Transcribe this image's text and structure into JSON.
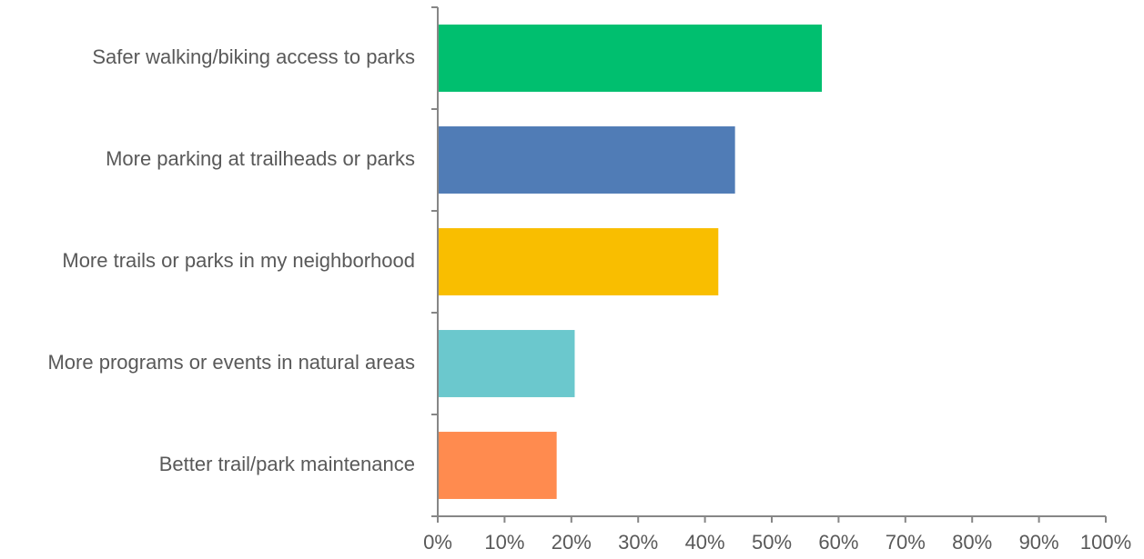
{
  "chart_data": {
    "type": "bar",
    "orientation": "horizontal",
    "categories": [
      "Safer walking/biking access to parks",
      "More parking at trailheads or parks",
      "More trails or parks in my neighborhood",
      "More programs or events in natural areas",
      "Better trail/park maintenance"
    ],
    "values": [
      57.5,
      44.5,
      42,
      20.5,
      17.8
    ],
    "colors": [
      "#00BF6F",
      "#507CB6",
      "#F9BE00",
      "#6BC8CD",
      "#FF8B4F"
    ],
    "xlim": [
      0,
      100
    ],
    "x_ticks": [
      0,
      10,
      20,
      30,
      40,
      50,
      60,
      70,
      80,
      90,
      100
    ],
    "x_tick_labels": [
      "0%",
      "10%",
      "20%",
      "30%",
      "40%",
      "50%",
      "60%",
      "70%",
      "80%",
      "90%",
      "100%"
    ],
    "grid": false,
    "legend": "none"
  }
}
